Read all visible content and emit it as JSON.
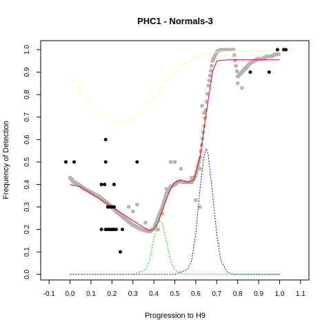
{
  "chart_data": {
    "type": "scatter",
    "title": "PHC1 - Normals-3",
    "xlabel": "Progression to H9",
    "ylabel": "Frequency of Detection",
    "xlim": [
      -0.14,
      1.14
    ],
    "ylim": [
      -0.025,
      1.04
    ],
    "x_ticks": [
      -0.1,
      0.0,
      0.1,
      0.2,
      0.3,
      0.4,
      0.5,
      0.6,
      0.7,
      0.8,
      0.9,
      1.0,
      1.1
    ],
    "x_tick_labels": [
      "-0.1",
      "0.0",
      "0.1",
      "0.2",
      "0.3",
      "0.4",
      "0.5",
      "0.6",
      "0.7",
      "0.8",
      "0.9",
      "1.0",
      "1.1"
    ],
    "y_ticks": [
      0.0,
      0.1,
      0.2,
      0.3,
      0.4,
      0.5,
      0.6,
      0.7,
      0.8,
      0.9,
      1.0
    ],
    "y_tick_labels": [
      "0.0",
      "0.1",
      "0.2",
      "0.3",
      "0.4",
      "0.5",
      "0.6",
      "0.7",
      "0.8",
      "0.9",
      "1.0"
    ],
    "grid": false,
    "legend": "none",
    "black_points": {
      "color": "#000000",
      "points": [
        [
          -0.02,
          0.5
        ],
        [
          0.02,
          0.5
        ],
        [
          0.15,
          0.4
        ],
        [
          0.165,
          0.4
        ],
        [
          0.17,
          0.5
        ],
        [
          0.17,
          0.6
        ],
        [
          0.21,
          0.4
        ],
        [
          0.32,
          0.5
        ],
        [
          0.18,
          0.3
        ],
        [
          0.19,
          0.3
        ],
        [
          0.2,
          0.3
        ],
        [
          0.21,
          0.3
        ],
        [
          0.15,
          0.2
        ],
        [
          0.17,
          0.2
        ],
        [
          0.18,
          0.2
        ],
        [
          0.19,
          0.2
        ],
        [
          0.2,
          0.2
        ],
        [
          0.21,
          0.2
        ],
        [
          0.22,
          0.2
        ],
        [
          0.25,
          0.2
        ],
        [
          0.24,
          0.1
        ],
        [
          0.86,
          0.9
        ],
        [
          0.95,
          0.9
        ],
        [
          0.99,
          1.0
        ],
        [
          1.02,
          1.0
        ],
        [
          1.03,
          1.0
        ]
      ]
    },
    "gray_points": {
      "color": "#b4b4b4",
      "trend": [
        [
          0.0,
          0.43
        ],
        [
          0.02,
          0.41
        ],
        [
          0.04,
          0.4
        ],
        [
          0.06,
          0.385
        ],
        [
          0.08,
          0.375
        ],
        [
          0.1,
          0.365
        ],
        [
          0.12,
          0.355
        ],
        [
          0.14,
          0.345
        ],
        [
          0.16,
          0.33
        ],
        [
          0.18,
          0.315
        ],
        [
          0.2,
          0.3
        ],
        [
          0.22,
          0.28
        ],
        [
          0.24,
          0.265
        ],
        [
          0.26,
          0.25
        ],
        [
          0.28,
          0.235
        ],
        [
          0.3,
          0.22
        ],
        [
          0.32,
          0.21
        ],
        [
          0.34,
          0.2
        ],
        [
          0.36,
          0.195
        ],
        [
          0.38,
          0.19
        ],
        [
          0.4,
          0.205
        ],
        [
          0.42,
          0.25
        ],
        [
          0.44,
          0.3
        ],
        [
          0.46,
          0.36
        ],
        [
          0.48,
          0.39
        ],
        [
          0.5,
          0.4
        ],
        [
          0.52,
          0.415
        ],
        [
          0.54,
          0.41
        ],
        [
          0.56,
          0.41
        ],
        [
          0.58,
          0.41
        ],
        [
          0.6,
          0.44
        ],
        [
          0.62,
          0.52
        ],
        [
          0.64,
          0.66
        ],
        [
          0.66,
          0.84
        ],
        [
          0.68,
          0.95
        ],
        [
          0.7,
          0.99
        ],
        [
          0.72,
          1.0
        ],
        [
          0.75,
          1.0
        ],
        [
          0.78,
          1.0
        ],
        [
          0.8,
          0.88
        ],
        [
          0.82,
          0.9
        ],
        [
          0.84,
          0.92
        ],
        [
          0.86,
          0.94
        ],
        [
          0.88,
          0.95
        ],
        [
          0.9,
          0.96
        ],
        [
          0.92,
          0.96
        ],
        [
          0.94,
          0.97
        ],
        [
          0.96,
          0.97
        ],
        [
          0.98,
          0.98
        ],
        [
          1.0,
          0.98
        ]
      ],
      "scatter": [
        [
          0.28,
          0.3
        ],
        [
          0.3,
          0.28
        ],
        [
          0.32,
          0.31
        ],
        [
          0.36,
          0.23
        ],
        [
          0.42,
          0.2
        ],
        [
          0.44,
          0.27
        ],
        [
          0.46,
          0.38
        ],
        [
          0.48,
          0.5
        ],
        [
          0.5,
          0.5
        ],
        [
          0.53,
          0.47
        ],
        [
          0.58,
          0.43
        ],
        [
          0.6,
          0.33
        ],
        [
          0.62,
          0.47
        ],
        [
          0.63,
          0.75
        ],
        [
          0.64,
          0.72
        ],
        [
          0.62,
          0.3
        ],
        [
          0.8,
          0.85
        ],
        [
          0.82,
          0.83
        ]
      ]
    },
    "series": [
      {
        "type": "line",
        "color": "#ff0000",
        "values": [
          [
            0.0,
            0.4
          ],
          [
            0.05,
            0.39
          ],
          [
            0.1,
            0.36
          ],
          [
            0.15,
            0.33
          ],
          [
            0.2,
            0.3
          ],
          [
            0.25,
            0.27
          ],
          [
            0.3,
            0.24
          ],
          [
            0.35,
            0.21
          ],
          [
            0.38,
            0.195
          ],
          [
            0.4,
            0.2
          ],
          [
            0.42,
            0.23
          ],
          [
            0.45,
            0.31
          ],
          [
            0.48,
            0.38
          ],
          [
            0.5,
            0.41
          ],
          [
            0.53,
            0.42
          ],
          [
            0.56,
            0.41
          ],
          [
            0.59,
            0.42
          ],
          [
            0.62,
            0.52
          ],
          [
            0.65,
            0.72
          ],
          [
            0.68,
            0.9
          ],
          [
            0.7,
            0.95
          ],
          [
            0.75,
            0.955
          ],
          [
            0.85,
            0.955
          ],
          [
            1.0,
            0.955
          ]
        ]
      },
      {
        "type": "line",
        "color": "#ffff99",
        "values": [
          [
            0.0,
            0.88
          ],
          [
            0.05,
            0.82
          ],
          [
            0.1,
            0.76
          ],
          [
            0.15,
            0.71
          ],
          [
            0.2,
            0.685
          ],
          [
            0.25,
            0.675
          ],
          [
            0.3,
            0.69
          ],
          [
            0.35,
            0.73
          ],
          [
            0.4,
            0.79
          ],
          [
            0.45,
            0.85
          ],
          [
            0.5,
            0.9
          ],
          [
            0.55,
            0.94
          ],
          [
            0.6,
            0.965
          ],
          [
            0.65,
            0.98
          ],
          [
            0.7,
            0.99
          ],
          [
            0.8,
            0.995
          ],
          [
            0.9,
            0.998
          ],
          [
            1.0,
            1.0
          ]
        ]
      },
      {
        "type": "line",
        "color": "#00cc00",
        "values": [
          [
            0.0,
            0.0
          ],
          [
            0.3,
            0.0
          ],
          [
            0.36,
            0.02
          ],
          [
            0.38,
            0.06
          ],
          [
            0.4,
            0.16
          ],
          [
            0.42,
            0.23
          ],
          [
            0.43,
            0.24
          ],
          [
            0.44,
            0.23
          ],
          [
            0.46,
            0.15
          ],
          [
            0.48,
            0.06
          ],
          [
            0.5,
            0.02
          ],
          [
            0.54,
            0.0
          ],
          [
            1.0,
            0.0
          ]
        ]
      },
      {
        "type": "line",
        "color": "#0000cc",
        "values": [
          [
            0.0,
            0.0
          ],
          [
            0.5,
            0.0
          ],
          [
            0.56,
            0.02
          ],
          [
            0.58,
            0.06
          ],
          [
            0.6,
            0.18
          ],
          [
            0.62,
            0.38
          ],
          [
            0.64,
            0.53
          ],
          [
            0.65,
            0.56
          ],
          [
            0.66,
            0.53
          ],
          [
            0.68,
            0.36
          ],
          [
            0.7,
            0.18
          ],
          [
            0.72,
            0.06
          ],
          [
            0.75,
            0.01
          ],
          [
            0.78,
            0.0
          ],
          [
            1.0,
            0.0
          ]
        ]
      }
    ]
  }
}
